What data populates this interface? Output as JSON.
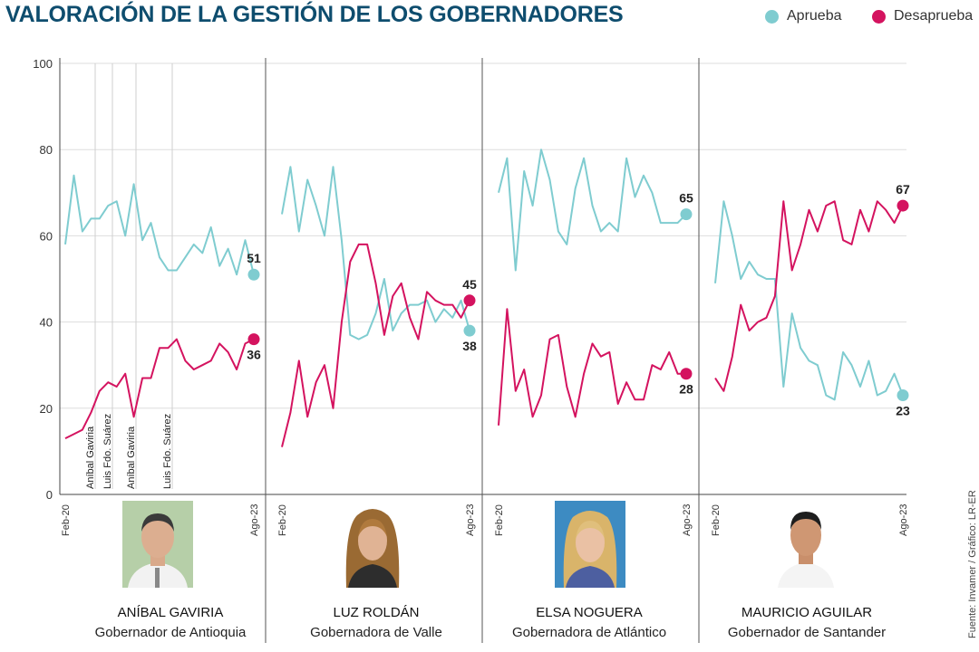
{
  "title": "VALORACIÓN DE LA GESTIÓN DE LOS GOBERNADORES",
  "legend": [
    {
      "label": "Aprueba",
      "color": "#7fccd0"
    },
    {
      "label": "Desaprueba",
      "color": "#d4135f"
    }
  ],
  "source": "Fuente: Invamer / Gráfico: LR-ER",
  "colors": {
    "approve": "#7fccd0",
    "disapprove": "#d4135f",
    "grid": "#dddddd",
    "divider": "#555555"
  },
  "y_ticks": [
    "0",
    "20",
    "40",
    "60",
    "80",
    "100"
  ],
  "governors": [
    {
      "name": "ANÍBAL GAVIRIA",
      "role": "Gobernador de Antioquia",
      "photo": "portrait-gaviria"
    },
    {
      "name": "LUZ ROLDÁN",
      "role": "Gobernadora de Valle",
      "photo": "portrait-roldan"
    },
    {
      "name": "ELSA NOGUERA",
      "role": "Gobernadora de Atlántico",
      "photo": "portrait-noguera"
    },
    {
      "name": "MAURICIO AGUILAR",
      "role": "Gobernador de Santander",
      "photo": "portrait-aguilar"
    }
  ],
  "chart_data": [
    {
      "type": "line",
      "panel": "ANÍBAL GAVIRIA",
      "x_start_label": "Feb-20",
      "x_end_label": "Ago-23",
      "ylim": [
        0,
        100
      ],
      "grid": true,
      "annotations": [
        "Aníbal Gaviria",
        "Luis Fdo. Suárez",
        "Aníbal Gaviria",
        "Luis Fdo. Suárez"
      ],
      "series": [
        {
          "name": "Aprueba",
          "values": [
            58,
            74,
            61,
            64,
            64,
            67,
            68,
            60,
            72,
            59,
            63,
            55,
            52,
            52,
            55,
            58,
            56,
            62,
            53,
            57,
            51,
            59,
            51
          ],
          "end_label": "51"
        },
        {
          "name": "Desaprueba",
          "values": [
            13,
            14,
            15,
            19,
            24,
            26,
            25,
            28,
            18,
            27,
            27,
            34,
            34,
            36,
            31,
            29,
            30,
            31,
            35,
            33,
            29,
            35,
            36
          ],
          "end_label": "36"
        }
      ]
    },
    {
      "type": "line",
      "panel": "LUZ ROLDÁN",
      "x_start_label": "Feb-20",
      "x_end_label": "Ago-23",
      "ylim": [
        0,
        100
      ],
      "grid": true,
      "series": [
        {
          "name": "Aprueba",
          "values": [
            65,
            76,
            61,
            73,
            67,
            60,
            76,
            59,
            37,
            36,
            37,
            42,
            50,
            38,
            42,
            44,
            44,
            45,
            40,
            43,
            41,
            45,
            38
          ],
          "end_label": "38"
        },
        {
          "name": "Desaprueba",
          "values": [
            11,
            19,
            31,
            18,
            26,
            30,
            20,
            40,
            54,
            58,
            58,
            49,
            37,
            46,
            49,
            41,
            36,
            47,
            45,
            44,
            44,
            41,
            45
          ],
          "end_label": "45"
        }
      ]
    },
    {
      "type": "line",
      "panel": "ELSA NOGUERA",
      "x_start_label": "Feb-20",
      "x_end_label": "Ago-23",
      "ylim": [
        0,
        100
      ],
      "grid": true,
      "series": [
        {
          "name": "Aprueba",
          "values": [
            70,
            78,
            52,
            75,
            67,
            80,
            73,
            61,
            58,
            71,
            78,
            67,
            61,
            63,
            61,
            78,
            69,
            74,
            70,
            63,
            63,
            63,
            65
          ],
          "end_label": "65"
        },
        {
          "name": "Desaprueba",
          "values": [
            16,
            43,
            24,
            29,
            18,
            23,
            36,
            37,
            25,
            18,
            28,
            35,
            32,
            33,
            21,
            26,
            22,
            22,
            30,
            29,
            33,
            28,
            28
          ],
          "end_label": "28"
        }
      ]
    },
    {
      "type": "line",
      "panel": "MAURICIO AGUILAR",
      "x_start_label": "Feb-20",
      "x_end_label": "Ago-23",
      "ylim": [
        0,
        100
      ],
      "grid": true,
      "series": [
        {
          "name": "Aprueba",
          "values": [
            49,
            68,
            60,
            50,
            54,
            51,
            50,
            50,
            25,
            42,
            34,
            31,
            30,
            23,
            22,
            33,
            30,
            25,
            31,
            23,
            24,
            28,
            23
          ],
          "end_label": "23"
        },
        {
          "name": "Desaprueba",
          "values": [
            27,
            24,
            32,
            44,
            38,
            40,
            41,
            46,
            68,
            52,
            58,
            66,
            61,
            67,
            68,
            59,
            58,
            66,
            61,
            68,
            66,
            63,
            67
          ],
          "end_label": "67"
        }
      ]
    }
  ]
}
